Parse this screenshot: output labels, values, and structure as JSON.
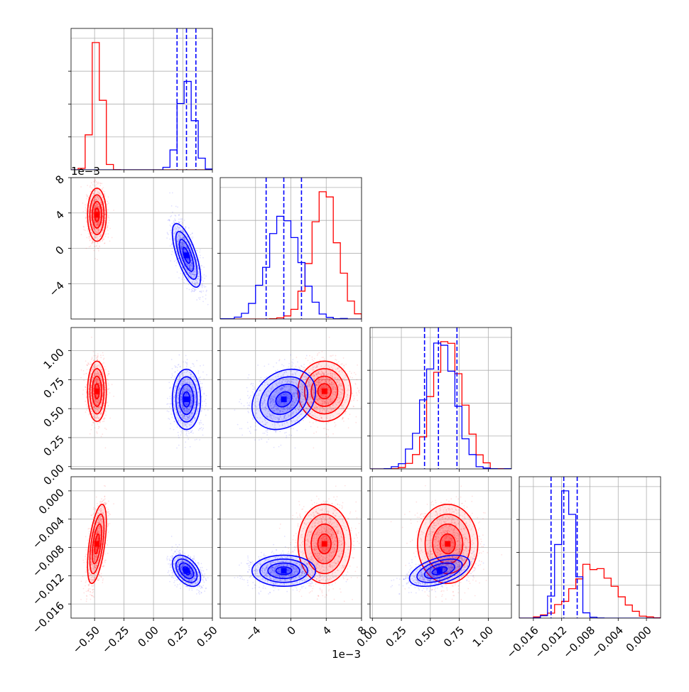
{
  "chart_data": {
    "type": "corner",
    "colors": {
      "series_a": "#ff0000",
      "series_b": "#0000ff",
      "quantile_lines": "#0000ff",
      "grid": "#b0b0b0"
    },
    "grid": true,
    "series": [
      {
        "color": "#ff0000",
        "center": [
          -0.48,
          0.0038,
          0.65,
          -0.0075
        ],
        "sd": [
          0.04,
          0.0015,
          0.13,
          0.0028
        ],
        "corr": [
          [
            1,
            0,
            0,
            0.55
          ],
          [
            0,
            1,
            0,
            0
          ],
          [
            0,
            0,
            1,
            0
          ],
          [
            0.55,
            0,
            0,
            1
          ]
        ]
      },
      {
        "color": "#0000ff",
        "center": [
          0.28,
          -0.0008,
          0.58,
          -0.0113
        ],
        "sd": [
          0.06,
          0.0018,
          0.13,
          0.0011
        ],
        "corr": [
          [
            1,
            -0.7,
            0,
            -0.45
          ],
          [
            -0.7,
            1,
            0.25,
            0
          ],
          [
            0,
            0.25,
            1,
            0.5
          ],
          [
            -0.45,
            0,
            0.5,
            1
          ]
        ]
      }
    ],
    "quantiles": [
      [
        0.2,
        0.28,
        0.36
      ],
      [
        -0.0028,
        -0.0008,
        0.0012
      ],
      [
        0.45,
        0.57,
        0.73
      ],
      [
        -0.0135,
        -0.0117,
        -0.0098
      ]
    ],
    "variables": [
      {
        "range": [
          -0.7,
          0.5
        ],
        "ticks": [
          -0.5,
          -0.25,
          0.0,
          0.25,
          0.5
        ],
        "tick_labels": [
          "−0.50",
          "−0.25",
          "0.00",
          "0.25",
          "0.50"
        ],
        "offset_label": ""
      },
      {
        "range": [
          -0.008,
          0.008
        ],
        "ticks": [
          -0.004,
          0.0,
          0.004,
          0.008
        ],
        "tick_labels": [
          "−4",
          "0",
          "4",
          "8"
        ],
        "offset_label": "1e−3"
      },
      {
        "range": [
          -0.02,
          1.2
        ],
        "ticks": [
          0.0,
          0.25,
          0.5,
          0.75,
          1.0
        ],
        "tick_labels": [
          "0.00",
          "0.25",
          "0.50",
          "0.75",
          "1.00"
        ],
        "offset_label": ""
      },
      {
        "range": [
          -0.018,
          0.002
        ],
        "ticks": [
          -0.016,
          -0.012,
          -0.008,
          -0.004,
          0.0
        ],
        "tick_labels": [
          "−0.016",
          "−0.012",
          "−0.008",
          "−0.004",
          "0.000"
        ],
        "offset_label": ""
      }
    ]
  }
}
